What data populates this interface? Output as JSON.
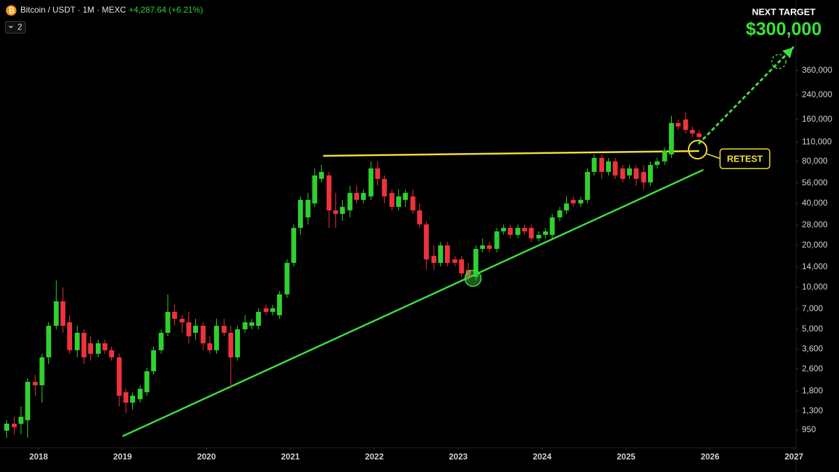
{
  "chart_data": {
    "type": "candlestick",
    "title": "Bitcoin / USDT · 1M · MEXC",
    "change": "+4,287.64 (+6.21%)",
    "indicator_count": 2,
    "target_label": "NEXT TARGET",
    "target_value": "$300,000",
    "retest_label": "RETEST",
    "log_scale": true,
    "grid": false,
    "up_color": "#2fd12f",
    "down_color": "#f0323c",
    "xlim": [
      2017.54,
      2027.02
    ],
    "xticks": [
      2018,
      2019,
      2020,
      2021,
      2022,
      2023,
      2024,
      2025,
      2026,
      2027
    ],
    "ylim": [
      710,
      1150000
    ],
    "yticks": [
      950,
      {
        "value": 1300,
        "label": "1,300"
      },
      {
        "value": 1800,
        "label": "1,800"
      },
      {
        "value": 2600,
        "label": "2,600"
      },
      {
        "value": 3600,
        "label": "3,600"
      },
      {
        "value": 5000,
        "label": "5,000"
      },
      {
        "value": 7000,
        "label": "7,000"
      },
      {
        "value": 10000,
        "label": "10,000"
      },
      {
        "value": 14000,
        "label": "14,000"
      },
      {
        "value": 20000,
        "label": "20,000"
      },
      {
        "value": 28000,
        "label": "28,000"
      },
      {
        "value": 40000,
        "label": "40,000"
      },
      {
        "value": 56000,
        "label": "56,000"
      },
      {
        "value": 80000,
        "label": "80,000"
      },
      {
        "value": 110000,
        "label": "110,000"
      },
      {
        "value": 160000,
        "label": "160,000"
      },
      {
        "value": 240000,
        "label": "240,000"
      },
      {
        "value": 360000,
        "label": "360,000"
      }
    ],
    "x": [
      2017.62,
      2017.71,
      2017.79,
      2017.87,
      2017.96,
      2018.04,
      2018.12,
      2018.21,
      2018.29,
      2018.37,
      2018.46,
      2018.54,
      2018.62,
      2018.71,
      2018.79,
      2018.87,
      2018.96,
      2019.04,
      2019.12,
      2019.21,
      2019.29,
      2019.37,
      2019.46,
      2019.54,
      2019.62,
      2019.71,
      2019.79,
      2019.87,
      2019.96,
      2020.04,
      2020.12,
      2020.21,
      2020.29,
      2020.37,
      2020.46,
      2020.54,
      2020.62,
      2020.71,
      2020.79,
      2020.87,
      2020.96,
      2021.04,
      2021.12,
      2021.21,
      2021.29,
      2021.37,
      2021.46,
      2021.54,
      2021.62,
      2021.71,
      2021.79,
      2021.87,
      2021.96,
      2022.04,
      2022.12,
      2022.21,
      2022.29,
      2022.37,
      2022.46,
      2022.54,
      2022.62,
      2022.71,
      2022.79,
      2022.87,
      2022.96,
      2023.04,
      2023.12,
      2023.21,
      2023.29,
      2023.37,
      2023.46,
      2023.54,
      2023.62,
      2023.71,
      2023.79,
      2023.87,
      2023.96,
      2024.04,
      2024.12,
      2024.21,
      2024.29,
      2024.37,
      2024.46,
      2024.54,
      2024.62,
      2024.71,
      2024.79,
      2024.87,
      2024.96,
      2025.04,
      2025.12,
      2025.21,
      2025.29,
      2025.37,
      2025.46,
      2025.54,
      2025.62,
      2025.71,
      2025.79,
      2025.87
    ],
    "open": [
      938,
      1053,
      1050,
      1115,
      2100,
      1985,
      3150,
      5300,
      7940,
      5610,
      3540,
      4720,
      3970,
      3340,
      3970,
      3540,
      3150,
      1770,
      1490,
      1576,
      1770,
      2500,
      3540,
      4720,
      6670,
      5950,
      5610,
      4720,
      5300,
      3970,
      3540,
      5300,
      4720,
      3150,
      5000,
      5300,
      5300,
      7070,
      6670,
      6300,
      8910,
      14980,
      26700,
      31750,
      40000,
      59930,
      63500,
      35640,
      33640,
      35640,
      47570,
      42380,
      44900,
      71270,
      59930,
      47570,
      37760,
      42380,
      44900,
      35640,
      28280,
      16820,
      14980,
      20000,
      15870,
      15870,
      13350,
      11890,
      18880,
      20000,
      18880,
      25200,
      26700,
      23790,
      26700,
      26700,
      22450,
      23790,
      23790,
      31750,
      35640,
      42380,
      40000,
      42380,
      67270,
      84760,
      67270,
      80000,
      71270,
      63500,
      71270,
      67270,
      56570,
      75510,
      80000,
      89800,
      151000,
      160000,
      134600,
      127000
    ],
    "high": [
      1115,
      1180,
      1400,
      2230,
      2360,
      3340,
      5610,
      11200,
      10000,
      6300,
      5300,
      5000,
      4460,
      4210,
      4210,
      3750,
      3340,
      1875,
      1770,
      1985,
      2650,
      3750,
      5000,
      8910,
      7490,
      6300,
      6670,
      5950,
      5610,
      4460,
      5950,
      5950,
      5300,
      5300,
      6300,
      5950,
      7070,
      7490,
      7490,
      9440,
      15870,
      28280,
      44900,
      47570,
      71270,
      75510,
      67270,
      47570,
      42380,
      53400,
      53400,
      50400,
      80000,
      80000,
      63500,
      50400,
      50400,
      50400,
      50400,
      40000,
      29970,
      20000,
      21190,
      21190,
      16820,
      16820,
      14980,
      20000,
      22450,
      21190,
      26700,
      28280,
      28280,
      28280,
      28280,
      28280,
      25200,
      26700,
      33640,
      37760,
      44900,
      44900,
      44900,
      71270,
      89800,
      89800,
      84760,
      84760,
      75510,
      75510,
      75510,
      75510,
      80000,
      84760,
      100800,
      170000,
      160000,
      179600,
      142500,
      134600
    ],
    "low": [
      835,
      885,
      885,
      835,
      1670,
      1490,
      2810,
      5000,
      4720,
      3340,
      3150,
      2810,
      2980,
      3150,
      3340,
      2980,
      1400,
      1250,
      1330,
      1490,
      1670,
      2360,
      3340,
      4460,
      5300,
      4720,
      3970,
      4210,
      3540,
      3340,
      3340,
      4460,
      1875,
      2980,
      4720,
      5000,
      5000,
      6300,
      6300,
      5950,
      8410,
      14140,
      23790,
      28280,
      37760,
      56570,
      26700,
      26700,
      29970,
      31750,
      40000,
      40000,
      42380,
      53400,
      40000,
      35640,
      35640,
      37760,
      33640,
      26700,
      13350,
      13350,
      14140,
      14140,
      14140,
      11890,
      11220,
      11220,
      17820,
      17820,
      17820,
      23790,
      22450,
      22450,
      23790,
      21190,
      21190,
      22450,
      22450,
      29970,
      33640,
      37760,
      37760,
      40000,
      63500,
      59930,
      63500,
      59930,
      56570,
      59930,
      53400,
      50400,
      53400,
      71270,
      75510,
      84760,
      134600,
      127000,
      119870,
      113000
    ],
    "close": [
      1053,
      993,
      1180,
      2100,
      1985,
      3150,
      5300,
      7940,
      5300,
      3540,
      4720,
      3150,
      3340,
      3970,
      3540,
      3150,
      1670,
      1490,
      1670,
      1875,
      2500,
      3540,
      4720,
      6670,
      5950,
      5610,
      4460,
      5300,
      3970,
      3540,
      5300,
      4720,
      3150,
      5000,
      5610,
      5610,
      6670,
      6670,
      7070,
      8910,
      14980,
      26700,
      42380,
      42380,
      63500,
      67270,
      35640,
      33640,
      37760,
      47570,
      42380,
      47570,
      71270,
      59930,
      44900,
      37760,
      44900,
      47570,
      35640,
      28280,
      15870,
      14980,
      20000,
      14980,
      14980,
      12600,
      11890,
      18880,
      20000,
      18880,
      25200,
      26700,
      23790,
      26700,
      25200,
      22450,
      23790,
      25200,
      31750,
      35640,
      40000,
      40000,
      42380,
      67270,
      84760,
      67270,
      80000,
      63500,
      59930,
      71270,
      59930,
      56570,
      75510,
      80000,
      95140,
      151000,
      142500,
      134600,
      127000,
      119870
    ],
    "trendlines": [
      {
        "color": "#f2e035",
        "x": [
          2021.39,
          2025.87
        ],
        "y": [
          87700,
          95000
        ]
      },
      {
        "color": "#3ee03e",
        "x": [
          2019.0,
          2025.92
        ],
        "y": [
          855,
          69600
        ]
      },
      {
        "color": "#3ee03e",
        "dashed": true,
        "arrow": true,
        "x": [
          2025.87,
          2026.99
        ],
        "y": [
          108000,
          525000
        ]
      }
    ]
  }
}
